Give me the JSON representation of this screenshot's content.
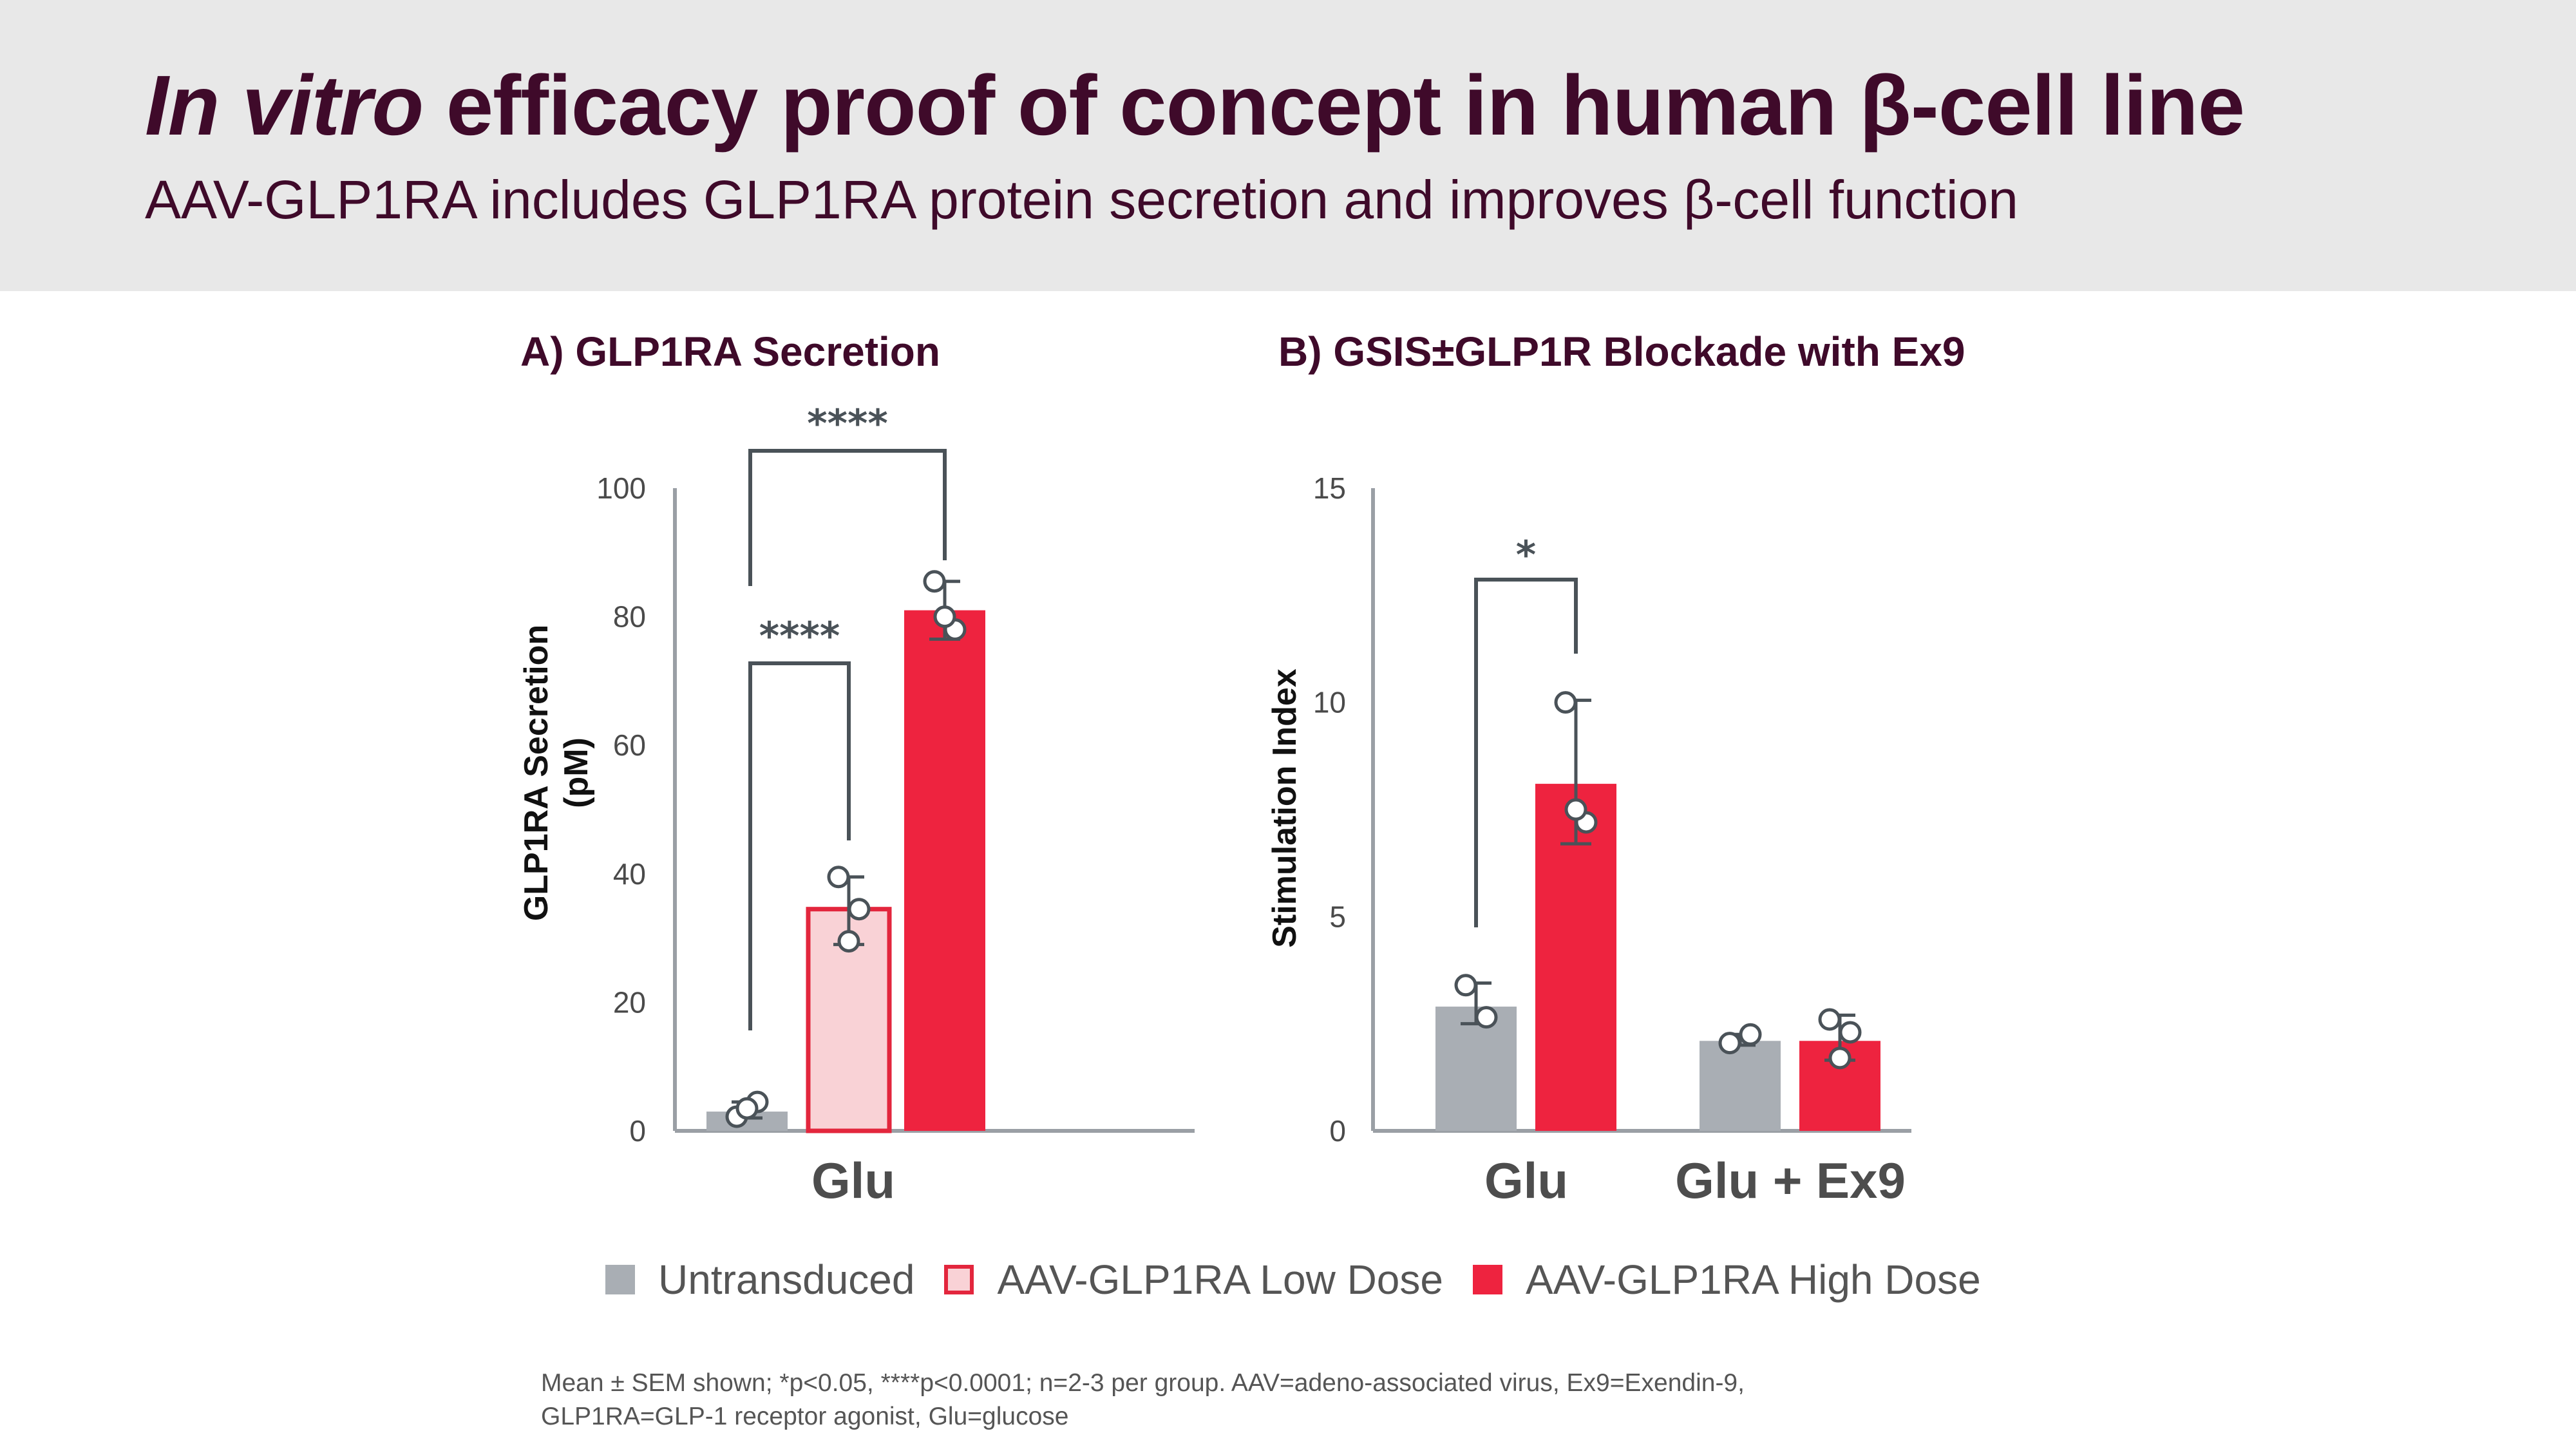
{
  "header": {
    "title_italic": "In vitro",
    "title_rest": " efficacy proof of concept in human β-cell line",
    "subtitle": "AAV-GLP1RA includes GLP1RA protein secretion and improves β-cell function"
  },
  "colors": {
    "untransduced": "#a9aeb4",
    "low_fill": "#f9d2d6",
    "low_border": "#e3263d",
    "high": "#ee233f",
    "axis": "#9a9fa5",
    "bracket": "#4a5258"
  },
  "chart_data": [
    {
      "type": "bar",
      "title": "A) GLP1RA Secretion",
      "ylabel_line1": "GLP1RA Secretion",
      "ylabel_line2": "(pM)",
      "ylim": [
        0,
        100
      ],
      "yticks": [
        0,
        20,
        40,
        60,
        80,
        100
      ],
      "categories": [
        "Glu"
      ],
      "series": [
        {
          "name": "Untransduced",
          "key": "untransduced",
          "values": [
            3
          ],
          "err_low": [
            2
          ],
          "err_high": [
            4.5
          ],
          "points": [
            [
              2.2,
              4.5,
              3.5
            ]
          ]
        },
        {
          "name": "AAV-GLP1RA Low Dose",
          "key": "low",
          "values": [
            34.5
          ],
          "err_low": [
            29
          ],
          "err_high": [
            39.5
          ],
          "points": [
            [
              39.5,
              34.5,
              29.5
            ]
          ]
        },
        {
          "name": "AAV-GLP1RA High Dose",
          "key": "high",
          "values": [
            81
          ],
          "err_low": [
            76.5
          ],
          "err_high": [
            85.5
          ],
          "points": [
            [
              85.5,
              78,
              80
            ]
          ]
        }
      ],
      "significance": [
        {
          "from": "untransduced",
          "to": "low",
          "label": "****"
        },
        {
          "from": "untransduced",
          "to": "high",
          "label": "****"
        }
      ]
    },
    {
      "type": "bar",
      "title": "B) GSIS±GLP1R Blockade with Ex9",
      "ylabel": "Stimulation Index",
      "ylim": [
        0,
        15
      ],
      "yticks": [
        0,
        5,
        10,
        15
      ],
      "categories": [
        "Glu",
        "Glu + Ex9"
      ],
      "series": [
        {
          "name": "Untransduced",
          "key": "untransduced",
          "values": [
            2.9,
            2.1
          ],
          "err_low": [
            2.5,
            2.0
          ],
          "err_high": [
            3.45,
            2.25
          ],
          "points": [
            [
              3.4,
              2.65
            ],
            [
              2.05,
              2.25
            ]
          ]
        },
        {
          "name": "AAV-GLP1RA High Dose",
          "key": "high",
          "values": [
            8.1,
            2.1
          ],
          "err_low": [
            6.7,
            1.65
          ],
          "err_high": [
            10.05,
            2.7
          ],
          "points": [
            [
              10.0,
              7.2,
              7.5
            ],
            [
              2.6,
              2.3,
              1.7
            ]
          ]
        }
      ],
      "significance": [
        {
          "category": "Glu",
          "from": "untransduced",
          "to": "high",
          "label": "*"
        }
      ]
    }
  ],
  "legend": [
    {
      "label": "Untransduced",
      "key": "untransduced"
    },
    {
      "label": "AAV-GLP1RA Low Dose",
      "key": "low"
    },
    {
      "label": "AAV-GLP1RA High Dose",
      "key": "high"
    }
  ],
  "footnote_line1": "Mean ± SEM shown; *p<0.05, ****p<0.0001; n=2-3 per group. AAV=adeno-associated virus, Ex9=Exendin-9,",
  "footnote_line2": "GLP1RA=GLP-1 receptor agonist, Glu=glucose"
}
